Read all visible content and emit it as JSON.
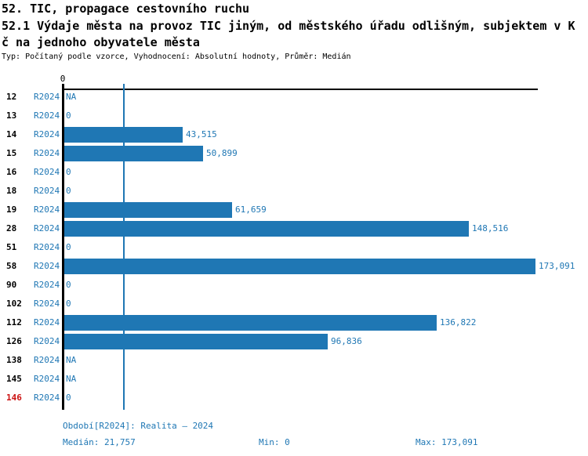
{
  "header": {
    "title": "52. TIC, propagace cestovního ruchu",
    "subtitle_lines": [
      "52.1 Výdaje města na provoz TIC jiným, od městského úřadu odlišným, subjektem v K",
      "č na jednoho obyvatele města"
    ],
    "meta": "Typ: Počítaný podle vzorce, Vyhodnocení: Absolutní hodnoty, Průměr: Medián"
  },
  "axis": {
    "zero_tick_label": "0"
  },
  "chart_data": {
    "type": "bar",
    "orientation": "horizontal",
    "title": "52. TIC, propagace cestovního ruchu",
    "subtitle": "52.1 Výdaje města na provoz TIC jiným, od městského úřadu odlišným, subjektem v Kč na jednoho obyvatele města",
    "categories": [
      "12",
      "13",
      "14",
      "15",
      "16",
      "18",
      "19",
      "28",
      "51",
      "58",
      "90",
      "102",
      "112",
      "126",
      "138",
      "145",
      "146"
    ],
    "series": [
      {
        "name": "R2024",
        "values": [
          null,
          0,
          43515,
          50899,
          0,
          0,
          61659,
          148516,
          0,
          173091,
          0,
          0,
          136822,
          96836,
          null,
          null,
          0
        ]
      }
    ],
    "value_labels": [
      "NA",
      "0",
      "43,515",
      "50,899",
      "0",
      "0",
      "61,659",
      "148,516",
      "0",
      "173,091",
      "0",
      "0",
      "136,822",
      "96,836",
      "NA",
      "NA",
      "0"
    ],
    "highlight_index": 16,
    "highlight_category": "146",
    "median_value": 21757,
    "min_value": 0,
    "max_value": 173091,
    "xlim": [
      0,
      173091
    ],
    "grid": false,
    "median_reference_line": true
  },
  "legend": {
    "period_label": "Období[R2024]: Realita – 2024",
    "median_label": "Medián: 21,757",
    "min_label": "Min: 0",
    "max_label": "Max: 173,091"
  },
  "colors": {
    "bar_blue": "#1f77b4",
    "text_blue": "#1f77b4",
    "highlight_red": "#cc1111",
    "axis_black": "#000000",
    "background": "#ffffff"
  }
}
